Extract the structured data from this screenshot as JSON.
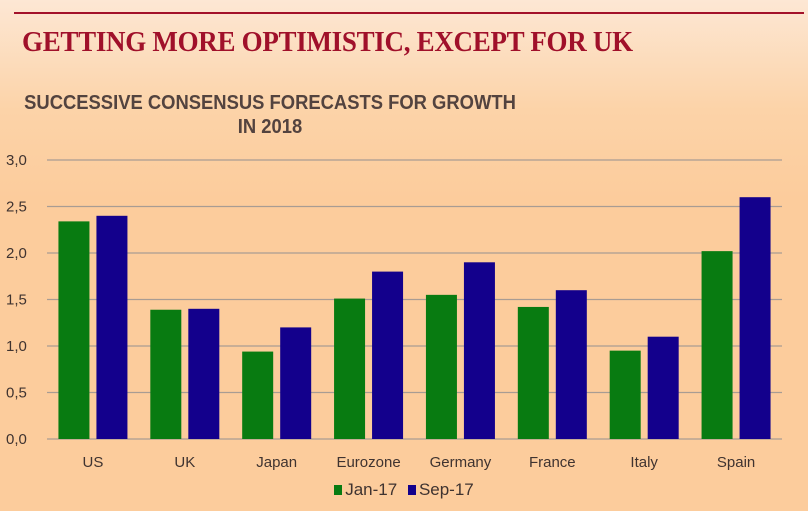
{
  "slide": {
    "title": "GETTING MORE OPTIMISTIC, EXCEPT FOR UK"
  },
  "colors": {
    "title": "#a0102a",
    "jan": "#087b11",
    "sep": "#13008c",
    "grid": "#a89c93"
  },
  "chart_data": {
    "type": "bar",
    "title_lines": [
      "SUCCESSIVE CONSENSUS FORECASTS FOR GROWTH",
      "IN 2018"
    ],
    "title": "SUCCESSIVE CONSENSUS FORECASTS FOR GROWTH IN 2018",
    "xlabel": "",
    "ylabel": "",
    "categories": [
      "US",
      "UK",
      "Japan",
      "Eurozone",
      "Germany",
      "France",
      "Italy",
      "Spain"
    ],
    "series": [
      {
        "name": "Jan-17",
        "color": "#087b11",
        "values": [
          2.34,
          1.39,
          0.94,
          1.51,
          1.55,
          1.42,
          0.95,
          2.02
        ]
      },
      {
        "name": "Sep-17",
        "color": "#13008c",
        "values": [
          2.4,
          1.4,
          1.2,
          1.8,
          1.9,
          1.6,
          1.1,
          2.6
        ]
      }
    ],
    "ylim": [
      0,
      3
    ],
    "yticks": [
      0,
      0.5,
      1,
      1.5,
      2,
      2.5,
      3
    ],
    "ytick_labels": [
      "0,0",
      "0,5",
      "1,0",
      "1,5",
      "2,0",
      "2,5",
      "3,0"
    ],
    "grid": true,
    "legend_position": "bottom"
  }
}
